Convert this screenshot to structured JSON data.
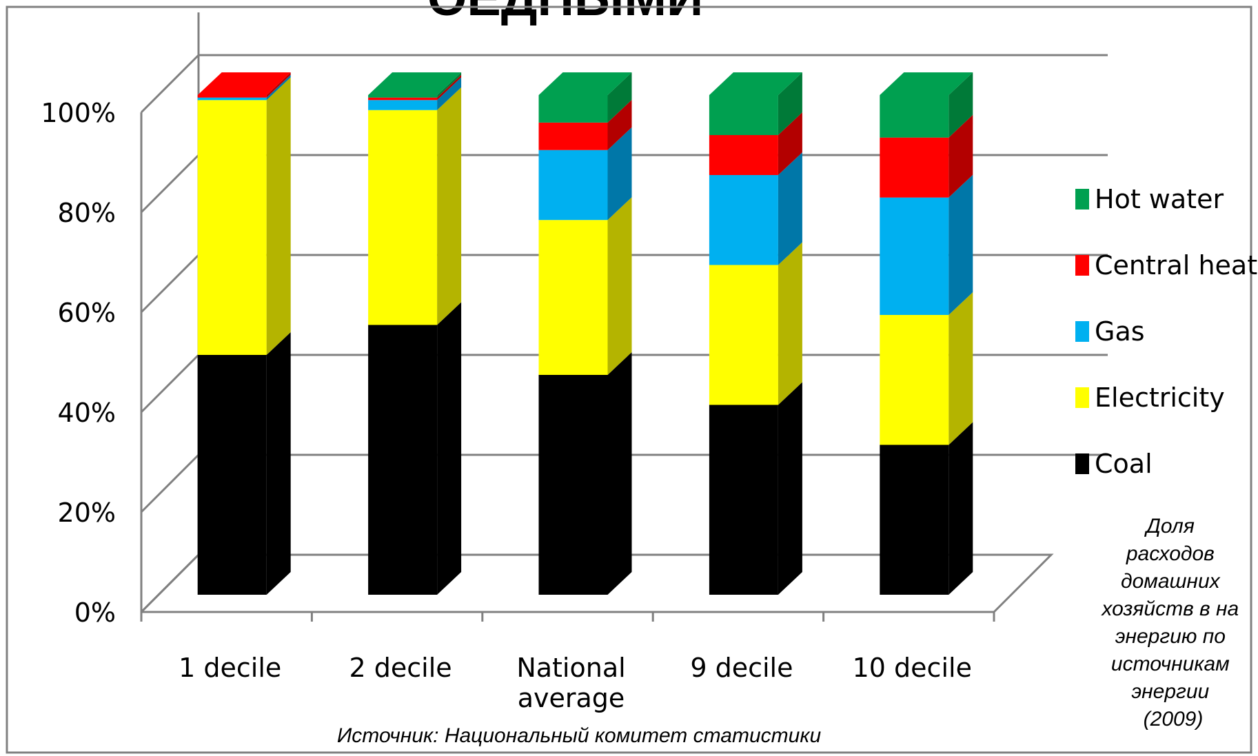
{
  "header_fragment": "ОЕДНЫМИ",
  "source_note": "Источник:  Национальный комитет статистики",
  "side_note_lines": [
    "Доля",
    "расходов",
    "домашних",
    "хозяйств в на",
    "энергию по",
    "источникам",
    "энергии",
    "(2009)"
  ],
  "chart_data": {
    "type": "bar",
    "stacked": true,
    "three_d": true,
    "categories": [
      "1 decile",
      "2 decile",
      "National average",
      "9 decile",
      "10 decile"
    ],
    "category_label_lines": [
      [
        "1 decile"
      ],
      [
        "2 decile"
      ],
      [
        "National",
        "average"
      ],
      [
        "9 decile"
      ],
      [
        "10 decile"
      ]
    ],
    "series": [
      {
        "name": "Coal",
        "color": "#000000",
        "side_color": "#000000",
        "values": [
          48,
          54,
          44,
          38,
          30
        ]
      },
      {
        "name": "Electricity",
        "color": "#ffff00",
        "side_color": "#b4b400",
        "values": [
          51,
          43,
          31,
          28,
          26
        ]
      },
      {
        "name": "Gas",
        "color": "#00b0f0",
        "side_color": "#0077a8",
        "values": [
          0.5,
          2,
          14,
          18,
          23.5
        ]
      },
      {
        "name": "Central heat",
        "color": "#ff0000",
        "side_color": "#b30000",
        "values": [
          0.5,
          0.5,
          5.5,
          8,
          12
        ]
      },
      {
        "name": "Hot water",
        "color": "#00a050",
        "side_color": "#007a38",
        "values": [
          0,
          0.5,
          5.5,
          8,
          8.5
        ]
      }
    ],
    "y_ticks": [
      "0%",
      "20%",
      "40%",
      "60%",
      "80%",
      "100%"
    ],
    "ylim": [
      0,
      100
    ],
    "grid": true,
    "legend_position": "right",
    "legend_order": [
      "Hot water",
      "Central heat",
      "Gas",
      "Electricity",
      "Coal"
    ]
  }
}
